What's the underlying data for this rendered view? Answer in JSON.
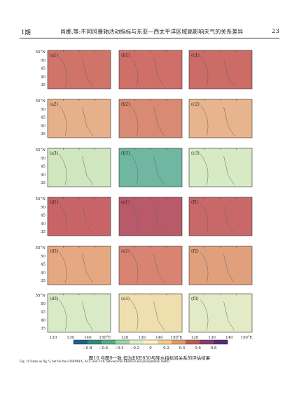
{
  "header": {
    "issue": "1期",
    "title": "肖娜,等:不同风暴轴活动指标与东亚—西太平洋区域高影响天气的关系差异",
    "page_number": "23"
  },
  "figure": {
    "row_lat_labels": [
      "55°N",
      "50",
      "45",
      "40",
      "35"
    ],
    "lon_labels": [
      "120",
      "130",
      "140",
      "150°E"
    ],
    "panels": [
      [
        "(a1)",
        "(b1)",
        "(c1)"
      ],
      [
        "(a2)",
        "(b2)",
        "(c2)"
      ],
      [
        "(a3)",
        "(b3)",
        "(c3)"
      ],
      [
        "(d1)",
        "(e1)",
        "(f1)"
      ],
      [
        "(d2)",
        "(e2)",
        "(f2)"
      ],
      [
        "(d3)",
        "(e3)",
        "(f3)"
      ]
    ],
    "colorbar": {
      "ticks": [
        "−0.8",
        "−0.6",
        "−0.4",
        "−0.2",
        "0",
        "0.2",
        "0.4",
        "0.6",
        "0.8"
      ],
      "colors": [
        "#1f5f8b",
        "#2e8a7a",
        "#4fb08a",
        "#9fd3a4",
        "#dcefc8",
        "#fbf3c4",
        "#f3cf8a",
        "#e39a6a",
        "#c25a52",
        "#8b3a6e",
        "#5a2a78"
      ]
    }
  },
  "caption": {
    "cn": "图10   与图9一致,但为EKE850与降水指标间关系的评估结果",
    "en": "Fig. 10   Same as fig. 9, but for the CORMAX, ACC and FVE between the EKE850 and precipitation metric"
  }
}
